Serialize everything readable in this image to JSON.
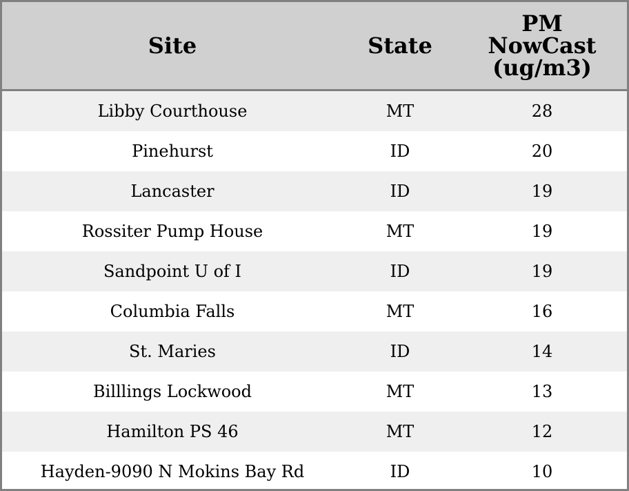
{
  "chart_data": {
    "type": "table",
    "columns": [
      "Site",
      "State",
      "PM NowCast (ug/m3)"
    ],
    "header_lines": [
      "PM",
      "NowCast",
      "(ug/m3)"
    ],
    "rows": [
      [
        "Libby Courthouse",
        "MT",
        "28"
      ],
      [
        "Pinehurst",
        "ID",
        "20"
      ],
      [
        "Lancaster",
        "ID",
        "19"
      ],
      [
        "Rossiter Pump House",
        "MT",
        "19"
      ],
      [
        "Sandpoint U of I",
        "ID",
        "19"
      ],
      [
        "Columbia Falls",
        "MT",
        "16"
      ],
      [
        "St. Maries",
        "ID",
        "14"
      ],
      [
        "Billlings Lockwood",
        "MT",
        "13"
      ],
      [
        "Hamilton PS 46",
        "MT",
        "12"
      ],
      [
        "Hayden-9090 N Mokins Bay Rd",
        "ID",
        "10"
      ]
    ],
    "colors": {
      "header_bg": "#d0d0d0",
      "stripe_bg": "#efefef",
      "border": "#808080"
    }
  }
}
